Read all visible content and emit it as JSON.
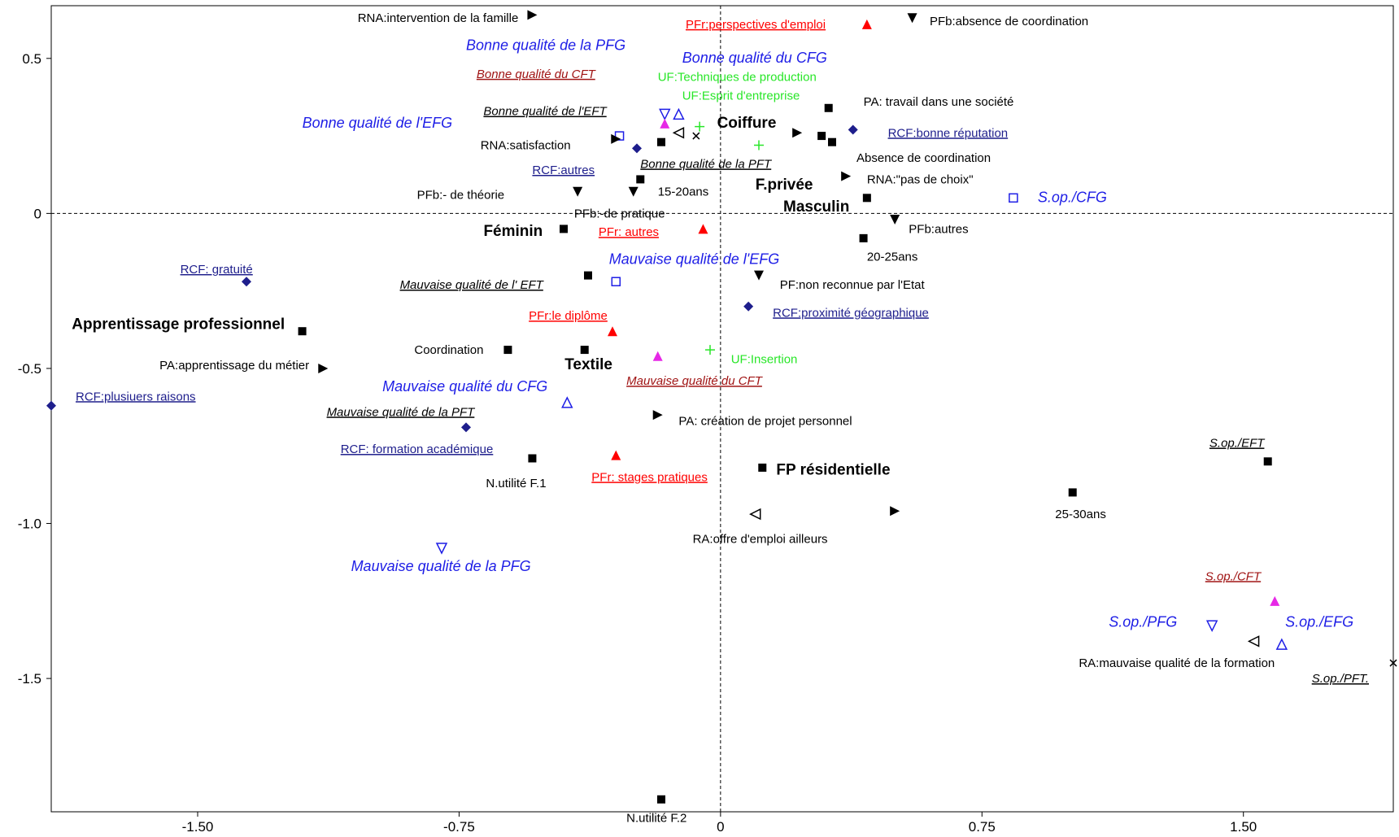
{
  "chart_data": {
    "type": "scatter",
    "title": "",
    "xlabel": "",
    "ylabel": "",
    "xlim": [
      -1.92,
      1.93
    ],
    "ylim": [
      -1.93,
      0.67
    ],
    "grid": false,
    "reference_lines": {
      "x": 0,
      "y": 0
    },
    "x_ticks": [
      -1.5,
      -0.75,
      0,
      0.75,
      1.5
    ],
    "x_tick_labels": [
      "-1.50",
      "-0.75",
      "0",
      "0.75",
      "1.50"
    ],
    "y_ticks": [
      0.5,
      0,
      -0.5,
      -1.0,
      -1.5
    ],
    "y_tick_labels": [
      "0.5",
      "0",
      "-0.5",
      "-1.0",
      "-1.5"
    ],
    "colors": {
      "black": "#000000",
      "blue": "#1e1ee6",
      "navy": "#1e1e8c",
      "green": "#28e628",
      "red": "#ff0000",
      "darkred": "#a01414",
      "magenta": "#e628e6"
    },
    "points": [
      {
        "x": -0.54,
        "y": 0.64,
        "marker": "triangle-right",
        "color": "black"
      },
      {
        "x": 0.55,
        "y": 0.63,
        "marker": "triangle-down",
        "color": "black"
      },
      {
        "x": 0.42,
        "y": 0.61,
        "marker": "triangle-up-filled",
        "color": "red"
      },
      {
        "x": -0.16,
        "y": 0.32,
        "marker": "triangle-down-open",
        "color": "blue"
      },
      {
        "x": -0.12,
        "y": 0.32,
        "marker": "triangle-up-open",
        "color": "blue"
      },
      {
        "x": -0.16,
        "y": 0.29,
        "marker": "triangle-up-filled",
        "color": "magenta"
      },
      {
        "x": -0.06,
        "y": 0.28,
        "marker": "plus",
        "color": "green"
      },
      {
        "x": 0.31,
        "y": 0.34,
        "marker": "square",
        "color": "black"
      },
      {
        "x": 0.38,
        "y": 0.27,
        "marker": "diamond",
        "color": "navy"
      },
      {
        "x": -0.12,
        "y": 0.26,
        "marker": "triangle-left-open",
        "color": "black"
      },
      {
        "x": -0.07,
        "y": 0.25,
        "marker": "cross",
        "color": "black"
      },
      {
        "x": 0.22,
        "y": 0.26,
        "marker": "triangle-right",
        "color": "black"
      },
      {
        "x": 0.29,
        "y": 0.25,
        "marker": "square",
        "color": "black"
      },
      {
        "x": 0.32,
        "y": 0.23,
        "marker": "square",
        "color": "black"
      },
      {
        "x": -0.29,
        "y": 0.25,
        "marker": "square-open",
        "color": "blue"
      },
      {
        "x": -0.3,
        "y": 0.24,
        "marker": "triangle-right",
        "color": "black"
      },
      {
        "x": -0.17,
        "y": 0.23,
        "marker": "square",
        "color": "black"
      },
      {
        "x": -0.24,
        "y": 0.21,
        "marker": "diamond",
        "color": "navy"
      },
      {
        "x": 0.11,
        "y": 0.22,
        "marker": "plus",
        "color": "green"
      },
      {
        "x": -0.23,
        "y": 0.11,
        "marker": "square",
        "color": "black"
      },
      {
        "x": 0.36,
        "y": 0.12,
        "marker": "triangle-right",
        "color": "black"
      },
      {
        "x": -0.41,
        "y": 0.07,
        "marker": "triangle-down",
        "color": "black"
      },
      {
        "x": -0.25,
        "y": 0.07,
        "marker": "triangle-down",
        "color": "black"
      },
      {
        "x": 0.42,
        "y": 0.05,
        "marker": "square",
        "color": "black"
      },
      {
        "x": 0.84,
        "y": 0.05,
        "marker": "square-open",
        "color": "blue"
      },
      {
        "x": 0.5,
        "y": -0.02,
        "marker": "triangle-down",
        "color": "black"
      },
      {
        "x": -0.45,
        "y": -0.05,
        "marker": "square",
        "color": "black"
      },
      {
        "x": -0.05,
        "y": -0.05,
        "marker": "triangle-up-filled",
        "color": "red"
      },
      {
        "x": 0.41,
        "y": -0.08,
        "marker": "square",
        "color": "black"
      },
      {
        "x": -1.36,
        "y": -0.22,
        "marker": "diamond",
        "color": "navy"
      },
      {
        "x": -0.38,
        "y": -0.2,
        "marker": "square",
        "color": "black"
      },
      {
        "x": 0.11,
        "y": -0.2,
        "marker": "triangle-down",
        "color": "black"
      },
      {
        "x": -0.3,
        "y": -0.22,
        "marker": "square-open",
        "color": "blue"
      },
      {
        "x": 0.08,
        "y": -0.3,
        "marker": "diamond",
        "color": "navy"
      },
      {
        "x": -1.2,
        "y": -0.38,
        "marker": "square",
        "color": "black"
      },
      {
        "x": -0.31,
        "y": -0.38,
        "marker": "triangle-up-filled",
        "color": "red"
      },
      {
        "x": -1.14,
        "y": -0.5,
        "marker": "triangle-right",
        "color": "black"
      },
      {
        "x": -0.61,
        "y": -0.44,
        "marker": "square",
        "color": "black"
      },
      {
        "x": -0.39,
        "y": -0.44,
        "marker": "square",
        "color": "black"
      },
      {
        "x": -0.18,
        "y": -0.46,
        "marker": "triangle-up-filled",
        "color": "magenta"
      },
      {
        "x": -0.03,
        "y": -0.44,
        "marker": "plus",
        "color": "green"
      },
      {
        "x": -1.92,
        "y": -0.62,
        "marker": "diamond",
        "color": "navy"
      },
      {
        "x": -0.44,
        "y": -0.61,
        "marker": "triangle-up-open",
        "color": "blue"
      },
      {
        "x": -0.18,
        "y": -0.65,
        "marker": "triangle-right",
        "color": "black"
      },
      {
        "x": -0.73,
        "y": -0.69,
        "marker": "diamond",
        "color": "navy"
      },
      {
        "x": -0.54,
        "y": -0.79,
        "marker": "square",
        "color": "black"
      },
      {
        "x": -0.3,
        "y": -0.78,
        "marker": "triangle-up-filled",
        "color": "red"
      },
      {
        "x": 0.12,
        "y": -0.82,
        "marker": "square",
        "color": "black"
      },
      {
        "x": 1.57,
        "y": -0.8,
        "marker": "square",
        "color": "black"
      },
      {
        "x": 1.01,
        "y": -0.9,
        "marker": "square",
        "color": "black"
      },
      {
        "x": 0.5,
        "y": -0.96,
        "marker": "triangle-right",
        "color": "black"
      },
      {
        "x": 0.1,
        "y": -0.97,
        "marker": "triangle-left-open",
        "color": "black"
      },
      {
        "x": -0.8,
        "y": -1.08,
        "marker": "triangle-down-open",
        "color": "blue"
      },
      {
        "x": 1.59,
        "y": -1.25,
        "marker": "triangle-up-filled",
        "color": "magenta"
      },
      {
        "x": 1.41,
        "y": -1.33,
        "marker": "triangle-down-open",
        "color": "blue"
      },
      {
        "x": 1.53,
        "y": -1.38,
        "marker": "triangle-left-open",
        "color": "black"
      },
      {
        "x": 1.61,
        "y": -1.39,
        "marker": "triangle-up-open",
        "color": "blue"
      },
      {
        "x": 1.93,
        "y": -1.45,
        "marker": "cross",
        "color": "black"
      },
      {
        "x": -0.17,
        "y": -1.89,
        "marker": "square",
        "color": "black"
      }
    ],
    "labels": [
      {
        "text": "RNA:intervention de la famille",
        "x": -0.58,
        "y": 0.63,
        "anchor": "end",
        "style": "plain",
        "color": "black"
      },
      {
        "text": "PFr:perspectives d'emploi",
        "x": -0.1,
        "y": 0.61,
        "anchor": "start",
        "style": "ul",
        "color": "red"
      },
      {
        "text": "PFb:absence de coordination",
        "x": 0.6,
        "y": 0.62,
        "anchor": "start",
        "style": "plain",
        "color": "black"
      },
      {
        "text": "Bonne qualité de la PFG",
        "x": -0.73,
        "y": 0.54,
        "anchor": "start",
        "style": "italic",
        "color": "blue"
      },
      {
        "text": "Bonne qualité du CFG",
        "x": -0.11,
        "y": 0.5,
        "anchor": "start",
        "style": "italic",
        "color": "blue"
      },
      {
        "text": "Bonne qualité du CFT",
        "x": -0.7,
        "y": 0.45,
        "anchor": "start",
        "style": "ul-italic",
        "color": "darkred"
      },
      {
        "text": "UF:Techniques de production",
        "x": -0.18,
        "y": 0.44,
        "anchor": "start",
        "style": "plain",
        "color": "green"
      },
      {
        "text": "UF:Esprit d'entreprise",
        "x": -0.11,
        "y": 0.38,
        "anchor": "start",
        "style": "plain",
        "color": "green"
      },
      {
        "text": "PA: travail dans une société",
        "x": 0.41,
        "y": 0.36,
        "anchor": "start",
        "style": "plain",
        "color": "black"
      },
      {
        "text": "Bonne qualité de l'EFT",
        "x": -0.68,
        "y": 0.33,
        "anchor": "start",
        "style": "ul-italic",
        "color": "black"
      },
      {
        "text": "Coiffure",
        "x": -0.01,
        "y": 0.29,
        "anchor": "start",
        "style": "bold",
        "color": "black"
      },
      {
        "text": "Bonne qualité de l'EFG",
        "x": -1.2,
        "y": 0.29,
        "anchor": "start",
        "style": "italic",
        "color": "blue"
      },
      {
        "text": "RCF:bonne réputation",
        "x": 0.48,
        "y": 0.26,
        "anchor": "start",
        "style": "ul",
        "color": "navy"
      },
      {
        "text": "RNA:satisfaction",
        "x": -0.43,
        "y": 0.22,
        "anchor": "end",
        "style": "plain",
        "color": "black"
      },
      {
        "text": "Absence de coordination",
        "x": 0.39,
        "y": 0.18,
        "anchor": "start",
        "style": "plain",
        "color": "black"
      },
      {
        "text": "Bonne qualité de la PFT",
        "x": -0.23,
        "y": 0.16,
        "anchor": "start",
        "style": "ul-italic",
        "color": "black"
      },
      {
        "text": "RCF:autres",
        "x": -0.54,
        "y": 0.14,
        "anchor": "start",
        "style": "ul",
        "color": "navy"
      },
      {
        "text": "RNA:\"pas de choix\"",
        "x": 0.42,
        "y": 0.11,
        "anchor": "start",
        "style": "plain",
        "color": "black"
      },
      {
        "text": "F.privée",
        "x": 0.1,
        "y": 0.09,
        "anchor": "start",
        "style": "bold",
        "color": "black"
      },
      {
        "text": "15-20ans",
        "x": -0.18,
        "y": 0.07,
        "anchor": "start",
        "style": "plain",
        "color": "black"
      },
      {
        "text": "PFb:- de théorie",
        "x": -0.62,
        "y": 0.06,
        "anchor": "end",
        "style": "plain",
        "color": "black"
      },
      {
        "text": "S.op./CFG",
        "x": 0.91,
        "y": 0.05,
        "anchor": "start",
        "style": "italic",
        "color": "blue"
      },
      {
        "text": "Masculin",
        "x": 0.18,
        "y": 0.02,
        "anchor": "start",
        "style": "bold",
        "color": "black"
      },
      {
        "text": "PFb:-de pratique",
        "x": -0.42,
        "y": 0.0,
        "anchor": "start",
        "style": "plain",
        "color": "black"
      },
      {
        "text": "Féminin",
        "x": -0.51,
        "y": -0.06,
        "anchor": "end",
        "style": "bold",
        "color": "black"
      },
      {
        "text": "PFr: autres",
        "x": -0.35,
        "y": -0.06,
        "anchor": "start",
        "style": "ul",
        "color": "red"
      },
      {
        "text": "PFb:autres",
        "x": 0.54,
        "y": -0.05,
        "anchor": "start",
        "style": "plain",
        "color": "black"
      },
      {
        "text": "Mauvaise qualité de l'EFG",
        "x": -0.32,
        "y": -0.15,
        "anchor": "start",
        "style": "italic",
        "color": "blue"
      },
      {
        "text": "20-25ans",
        "x": 0.42,
        "y": -0.14,
        "anchor": "start",
        "style": "plain",
        "color": "black"
      },
      {
        "text": "RCF: gratuité",
        "x": -1.55,
        "y": -0.18,
        "anchor": "start",
        "style": "ul",
        "color": "navy"
      },
      {
        "text": "Mauvaise qualité de l' EFT",
        "x": -0.92,
        "y": -0.23,
        "anchor": "start",
        "style": "ul-italic",
        "color": "black"
      },
      {
        "text": "PF:non reconnue par l'Etat",
        "x": 0.17,
        "y": -0.23,
        "anchor": "start",
        "style": "plain",
        "color": "black"
      },
      {
        "text": "RCF:proximité géographique",
        "x": 0.15,
        "y": -0.32,
        "anchor": "start",
        "style": "ul",
        "color": "navy"
      },
      {
        "text": "PFr:le diplôme",
        "x": -0.55,
        "y": -0.33,
        "anchor": "start",
        "style": "ul",
        "color": "red"
      },
      {
        "text": "Apprentissage professionnel",
        "x": -1.25,
        "y": -0.36,
        "anchor": "end",
        "style": "bold",
        "color": "black"
      },
      {
        "text": "UF:Insertion",
        "x": 0.03,
        "y": -0.47,
        "anchor": "start",
        "style": "plain",
        "color": "green"
      },
      {
        "text": "Coordination",
        "x": -0.68,
        "y": -0.44,
        "anchor": "end",
        "style": "plain",
        "color": "black"
      },
      {
        "text": "PA:apprentissage du métier",
        "x": -1.18,
        "y": -0.49,
        "anchor": "end",
        "style": "plain",
        "color": "black"
      },
      {
        "text": "Textile",
        "x": -0.31,
        "y": -0.49,
        "anchor": "end",
        "style": "bold",
        "color": "black"
      },
      {
        "text": "Mauvaise qualité du CFT",
        "x": -0.27,
        "y": -0.54,
        "anchor": "start",
        "style": "ul-italic",
        "color": "darkred"
      },
      {
        "text": "Mauvaise qualité du CFG",
        "x": -0.97,
        "y": -0.56,
        "anchor": "start",
        "style": "italic",
        "color": "blue"
      },
      {
        "text": "RCF:plusiuers raisons",
        "x": -1.85,
        "y": -0.59,
        "anchor": "start",
        "style": "ul",
        "color": "navy"
      },
      {
        "text": "Mauvaise qualité de la PFT",
        "x": -1.13,
        "y": -0.64,
        "anchor": "start",
        "style": "ul-italic",
        "color": "black"
      },
      {
        "text": "PA: création de projet personnel",
        "x": -0.12,
        "y": -0.67,
        "anchor": "start",
        "style": "plain",
        "color": "black"
      },
      {
        "text": "RCF: formation académique",
        "x": -1.09,
        "y": -0.76,
        "anchor": "start",
        "style": "ul",
        "color": "navy"
      },
      {
        "text": "S.op./EFT",
        "x": 1.56,
        "y": -0.74,
        "anchor": "end",
        "style": "ul-italic",
        "color": "black"
      },
      {
        "text": "FP résidentielle",
        "x": 0.16,
        "y": -0.83,
        "anchor": "start",
        "style": "bold",
        "color": "black"
      },
      {
        "text": "PFr: stages pratiques",
        "x": -0.37,
        "y": -0.85,
        "anchor": "start",
        "style": "ul",
        "color": "red"
      },
      {
        "text": "N.utilité F.1",
        "x": -0.5,
        "y": -0.87,
        "anchor": "end",
        "style": "plain",
        "color": "black"
      },
      {
        "text": "25-30ans",
        "x": 0.96,
        "y": -0.97,
        "anchor": "start",
        "style": "plain",
        "color": "black"
      },
      {
        "text": "RA:offre d'emploi ailleurs",
        "x": -0.08,
        "y": -1.05,
        "anchor": "start",
        "style": "plain",
        "color": "black"
      },
      {
        "text": "Mauvaise qualité de la PFG",
        "x": -1.06,
        "y": -1.14,
        "anchor": "start",
        "style": "italic",
        "color": "blue"
      },
      {
        "text": "S.op./CFT",
        "x": 1.55,
        "y": -1.17,
        "anchor": "end",
        "style": "ul-italic",
        "color": "darkred"
      },
      {
        "text": "S.op./PFG",
        "x": 1.31,
        "y": -1.32,
        "anchor": "end",
        "style": "italic",
        "color": "blue"
      },
      {
        "text": "S.op./EFG",
        "x": 1.62,
        "y": -1.32,
        "anchor": "start",
        "style": "italic",
        "color": "blue"
      },
      {
        "text": "RA:mauvaise qualité de la formation",
        "x": 1.59,
        "y": -1.45,
        "anchor": "end",
        "style": "plain",
        "color": "black"
      },
      {
        "text": "S.op./PFT.",
        "x": 1.86,
        "y": -1.5,
        "anchor": "end",
        "style": "ul-italic",
        "color": "black"
      },
      {
        "text": "N.utilité F.2",
        "x": -0.27,
        "y": -1.95,
        "anchor": "start",
        "style": "plain",
        "color": "black"
      }
    ]
  }
}
